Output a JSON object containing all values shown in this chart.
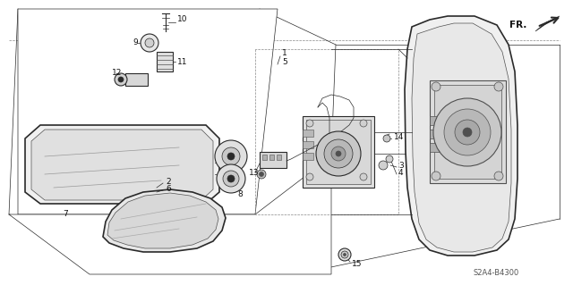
{
  "background_color": "#ffffff",
  "fig_width": 6.4,
  "fig_height": 3.19,
  "dpi": 100,
  "diagram_code_ref": "S2A4-B4300",
  "fr_label": "FR.",
  "line_color": "#2a2a2a",
  "light_gray": "#c8c8c8",
  "mid_gray": "#a0a0a0",
  "dark_gray": "#505050"
}
